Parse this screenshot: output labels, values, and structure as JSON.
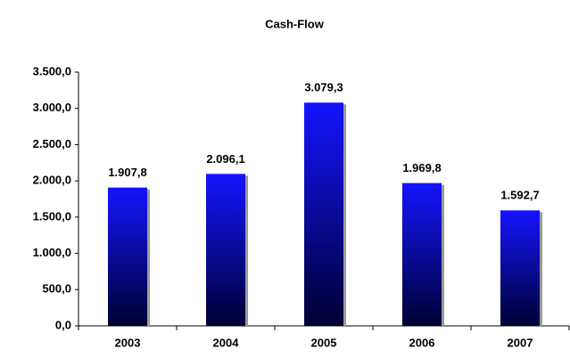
{
  "chart_data": {
    "type": "bar",
    "title": "Cash-Flow",
    "categories": [
      "2003",
      "2004",
      "2005",
      "2006",
      "2007"
    ],
    "values": [
      1907.8,
      2096.1,
      3079.3,
      1969.8,
      1592.7
    ],
    "value_labels": [
      "1.907,8",
      "2.096,1",
      "3.079,3",
      "1.969,8",
      "1.592,7"
    ],
    "color": "#1414ff",
    "ylim": [
      0,
      3500
    ],
    "yticks": [
      {
        "value": 0,
        "label": "0,0"
      },
      {
        "value": 500,
        "label": "500,0"
      },
      {
        "value": 1000,
        "label": "1.000,0"
      },
      {
        "value": 1500,
        "label": "1.500,0"
      },
      {
        "value": 2000,
        "label": "2.000,0"
      },
      {
        "value": 2500,
        "label": "2.500,0"
      },
      {
        "value": 3000,
        "label": "3.000,0"
      },
      {
        "value": 3500,
        "label": "3.500,0"
      }
    ],
    "grid": false
  }
}
